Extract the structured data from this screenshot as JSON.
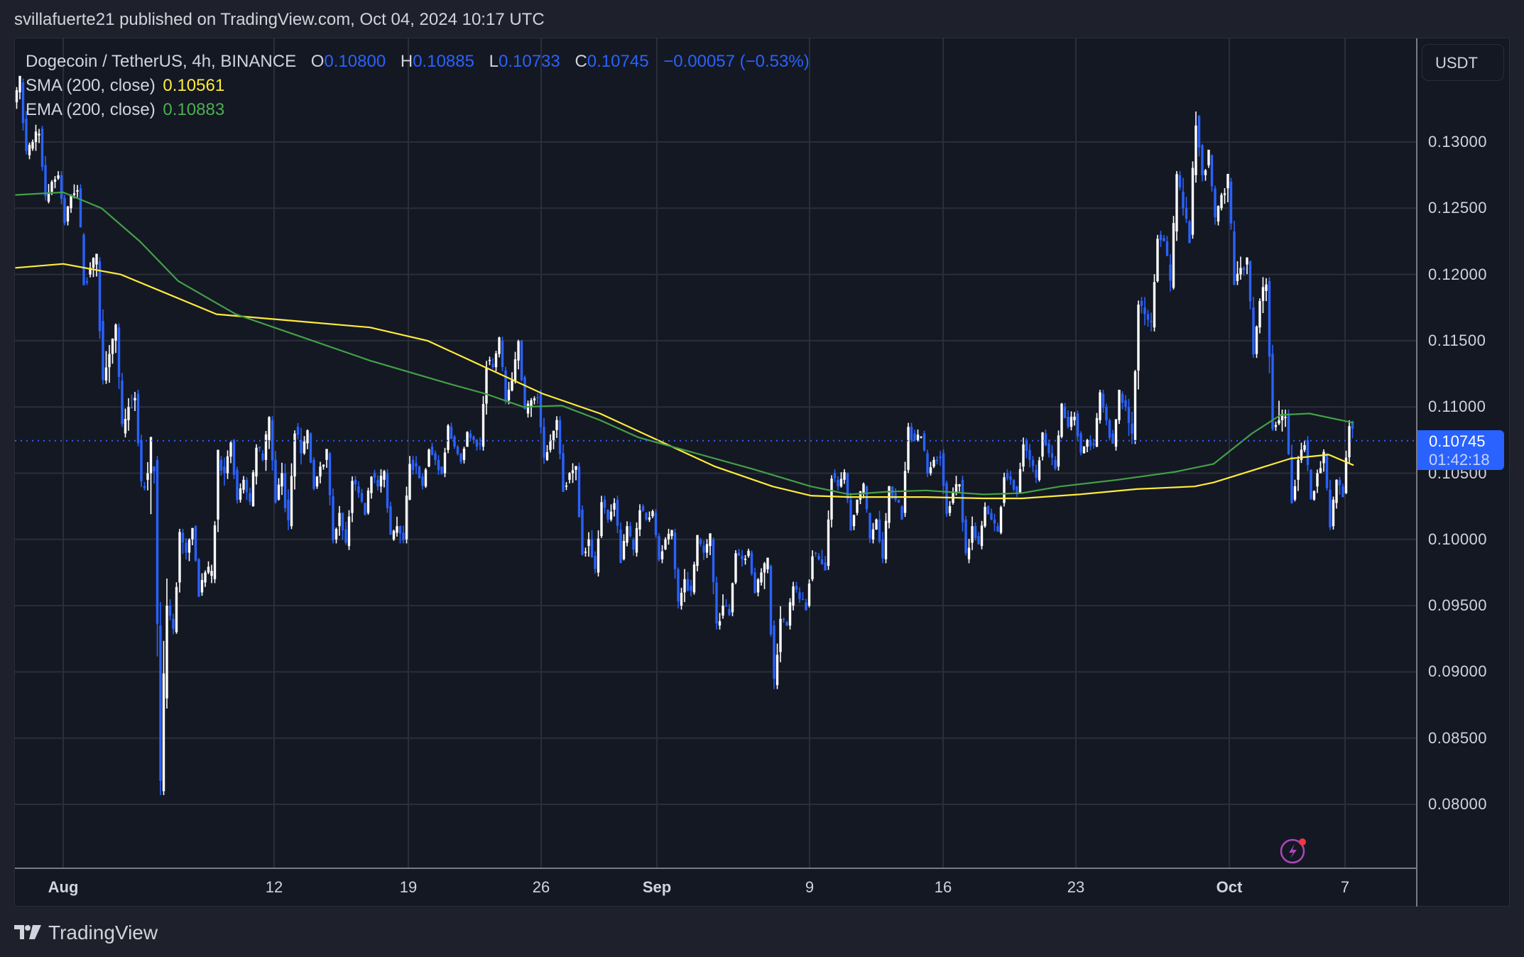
{
  "publisher": {
    "text": "svillafuerte21 published on TradingView.com, Oct 04, 2024 10:17 UTC"
  },
  "legend": {
    "symbol": "Dogecoin / TetherUS, 4h, BINANCE",
    "o_label": "O",
    "o_value": "0.10800",
    "h_label": "H",
    "h_value": "0.10885",
    "l_label": "L",
    "l_value": "0.10733",
    "c_label": "C",
    "c_value": "0.10745",
    "change": "−0.00057 (−0.53%)",
    "sma_label": "SMA (200, close)",
    "sma_value": "0.10561",
    "ema_label": "EMA (200, close)",
    "ema_value": "0.10883"
  },
  "price_axis": {
    "currency_button": "USDT",
    "ticks": [
      "0.13000",
      "0.12500",
      "0.12000",
      "0.11500",
      "0.11000",
      "0.10500",
      "0.10000",
      "0.09500",
      "0.09000",
      "0.08500",
      "0.08000"
    ],
    "current_price": "0.10745",
    "countdown": "01:42:18"
  },
  "time_axis": {
    "ticks": [
      {
        "label": "Aug",
        "bold": true
      },
      {
        "label": "12",
        "bold": false
      },
      {
        "label": "19",
        "bold": false
      },
      {
        "label": "26",
        "bold": false
      },
      {
        "label": "Sep",
        "bold": true
      },
      {
        "label": "9",
        "bold": false
      },
      {
        "label": "16",
        "bold": false
      },
      {
        "label": "23",
        "bold": false
      },
      {
        "label": "Oct",
        "bold": true
      },
      {
        "label": "7",
        "bold": false
      }
    ]
  },
  "footer": {
    "brand": "TradingView"
  },
  "colors": {
    "up_candle": "#ffffff",
    "down_candle": "#2962ff",
    "sma": "#ffeb3b",
    "ema": "#43a047",
    "grid": "#2a2e39",
    "background": "#141823"
  },
  "chart_data": {
    "type": "candlestick",
    "title": "Dogecoin / TetherUS, 4h, BINANCE",
    "xlabel": "",
    "ylabel": "USDT",
    "ylim": [
      0.0765,
      0.1365
    ],
    "grid": true,
    "x_ticks": [
      "Aug",
      "12",
      "19",
      "26",
      "Sep",
      "9",
      "16",
      "23",
      "Oct",
      "7"
    ],
    "y_ticks": [
      0.08,
      0.085,
      0.09,
      0.095,
      0.1,
      0.105,
      0.11,
      0.115,
      0.12,
      0.125,
      0.13
    ],
    "daily_ohlc_approx": {
      "start_day_offset_from_aug1": -2.5,
      "bars": [
        [
          0.133,
          0.1345,
          0.129,
          0.13
        ],
        [
          0.13,
          0.131,
          0.1255,
          0.127
        ],
        [
          0.127,
          0.1275,
          0.124,
          0.126
        ],
        [
          0.126,
          0.1265,
          0.1195,
          0.1205
        ],
        [
          0.1205,
          0.121,
          0.112,
          0.114
        ],
        [
          0.114,
          0.116,
          0.108,
          0.11
        ],
        [
          0.11,
          0.111,
          0.104,
          0.105
        ],
        [
          0.105,
          0.106,
          0.081,
          0.095
        ],
        [
          0.095,
          0.1005,
          0.093,
          0.099
        ],
        [
          0.099,
          0.101,
          0.096,
          0.0975
        ],
        [
          0.0975,
          0.106,
          0.097,
          0.105
        ],
        [
          0.105,
          0.1075,
          0.103,
          0.1045
        ],
        [
          0.1045,
          0.107,
          0.1025,
          0.106
        ],
        [
          0.106,
          0.109,
          0.103,
          0.105
        ],
        [
          0.105,
          0.1085,
          0.101,
          0.1065
        ],
        [
          0.1065,
          0.108,
          0.104,
          0.1055
        ],
        [
          0.1055,
          0.1065,
          0.1,
          0.102
        ],
        [
          0.102,
          0.1045,
          0.0995,
          0.1035
        ],
        [
          0.1035,
          0.105,
          0.102,
          0.104
        ],
        [
          0.104,
          0.105,
          0.1,
          0.101
        ],
        [
          0.101,
          0.106,
          0.1,
          0.1055
        ],
        [
          0.1055,
          0.107,
          0.104,
          0.106
        ],
        [
          0.106,
          0.1085,
          0.105,
          0.107
        ],
        [
          0.107,
          0.108,
          0.106,
          0.1075
        ],
        [
          0.1075,
          0.1135,
          0.107,
          0.113
        ],
        [
          0.113,
          0.115,
          0.1105,
          0.112
        ],
        [
          0.112,
          0.115,
          0.1095,
          0.1105
        ],
        [
          0.1105,
          0.111,
          0.106,
          0.1075
        ],
        [
          0.1075,
          0.109,
          0.104,
          0.105
        ],
        [
          0.105,
          0.1055,
          0.099,
          0.1
        ],
        [
          0.1,
          0.103,
          0.0975,
          0.1015
        ],
        [
          0.1015,
          0.103,
          0.0985,
          0.101
        ],
        [
          0.101,
          0.1025,
          0.099,
          0.1015
        ],
        [
          0.1015,
          0.102,
          0.0985,
          0.1
        ],
        [
          0.1,
          0.1005,
          0.095,
          0.097
        ],
        [
          0.097,
          0.1,
          0.096,
          0.099
        ],
        [
          0.099,
          0.1,
          0.0935,
          0.095
        ],
        [
          0.095,
          0.099,
          0.0945,
          0.0985
        ],
        [
          0.0985,
          0.099,
          0.096,
          0.0975
        ],
        [
          0.0975,
          0.098,
          0.089,
          0.094
        ],
        [
          0.094,
          0.0965,
          0.0935,
          0.0955
        ],
        [
          0.0955,
          0.099,
          0.095,
          0.0985
        ],
        [
          0.0985,
          0.105,
          0.098,
          0.104
        ],
        [
          0.104,
          0.105,
          0.101,
          0.103
        ],
        [
          0.103,
          0.104,
          0.1,
          0.1015
        ],
        [
          0.1015,
          0.104,
          0.0985,
          0.103
        ],
        [
          0.103,
          0.1085,
          0.102,
          0.1075
        ],
        [
          0.1075,
          0.108,
          0.105,
          0.106
        ],
        [
          0.106,
          0.1065,
          0.102,
          0.1035
        ],
        [
          0.1035,
          0.1045,
          0.0985,
          0.101
        ],
        [
          0.101,
          0.1025,
          0.0995,
          0.1015
        ],
        [
          0.1015,
          0.105,
          0.1005,
          0.1045
        ],
        [
          0.1045,
          0.1075,
          0.1035,
          0.106
        ],
        [
          0.106,
          0.108,
          0.1045,
          0.1065
        ],
        [
          0.1065,
          0.11,
          0.1055,
          0.1085
        ],
        [
          0.1085,
          0.1095,
          0.1065,
          0.1075
        ],
        [
          0.1075,
          0.111,
          0.107,
          0.109
        ],
        [
          0.109,
          0.111,
          0.107,
          0.11
        ],
        [
          0.11,
          0.118,
          0.1075,
          0.117
        ],
        [
          0.117,
          0.123,
          0.116,
          0.1225
        ],
        [
          0.1225,
          0.1275,
          0.119,
          0.125
        ],
        [
          0.125,
          0.132,
          0.123,
          0.1275
        ],
        [
          0.1275,
          0.129,
          0.124,
          0.126
        ],
        [
          0.126,
          0.127,
          0.1195,
          0.1205
        ],
        [
          0.1205,
          0.121,
          0.114,
          0.118
        ],
        [
          0.118,
          0.1195,
          0.1085,
          0.109
        ],
        [
          0.109,
          0.1095,
          0.103,
          0.106
        ],
        [
          0.106,
          0.1075,
          0.103,
          0.105
        ],
        [
          0.105,
          0.1065,
          0.101,
          0.1045
        ],
        [
          0.1045,
          0.1089,
          0.1035,
          0.1075
        ]
      ]
    },
    "series": [
      {
        "name": "SMA (200, close)",
        "color": "#ffeb3b",
        "points_day_price": [
          [
            -2.5,
            0.1205
          ],
          [
            0,
            0.1208
          ],
          [
            3,
            0.12
          ],
          [
            6,
            0.1182
          ],
          [
            8,
            0.117
          ],
          [
            12,
            0.1165
          ],
          [
            16,
            0.116
          ],
          [
            19,
            0.115
          ],
          [
            22,
            0.113
          ],
          [
            25,
            0.111
          ],
          [
            28,
            0.1095
          ],
          [
            31,
            0.1075
          ],
          [
            34,
            0.1055
          ],
          [
            37,
            0.104
          ],
          [
            39,
            0.1033
          ],
          [
            41,
            0.1032
          ],
          [
            45,
            0.1032
          ],
          [
            48,
            0.1031
          ],
          [
            50,
            0.1031
          ],
          [
            53,
            0.1034
          ],
          [
            56,
            0.1038
          ],
          [
            59,
            0.104
          ],
          [
            60,
            0.1043
          ],
          [
            62,
            0.1052
          ],
          [
            64,
            0.1061
          ],
          [
            66,
            0.1064
          ],
          [
            67.3,
            0.1056
          ]
        ],
        "last_value": 0.10561
      },
      {
        "name": "EMA (200, close)",
        "color": "#43a047",
        "points_day_price": [
          [
            -2.5,
            0.126
          ],
          [
            0,
            0.1262
          ],
          [
            2,
            0.125
          ],
          [
            4,
            0.1225
          ],
          [
            6,
            0.1195
          ],
          [
            9,
            0.117
          ],
          [
            12,
            0.1155
          ],
          [
            16,
            0.1135
          ],
          [
            20,
            0.1118
          ],
          [
            22,
            0.111
          ],
          [
            24,
            0.11
          ],
          [
            26,
            0.1101
          ],
          [
            28,
            0.109
          ],
          [
            30,
            0.1077
          ],
          [
            33,
            0.1065
          ],
          [
            36,
            0.1053
          ],
          [
            39,
            0.104
          ],
          [
            41,
            0.1034
          ],
          [
            43,
            0.1036
          ],
          [
            45,
            0.1037
          ],
          [
            48,
            0.1034
          ],
          [
            50,
            0.1035
          ],
          [
            52,
            0.104
          ],
          [
            55,
            0.1045
          ],
          [
            58,
            0.1051
          ],
          [
            60,
            0.1057
          ],
          [
            62,
            0.108
          ],
          [
            63.5,
            0.1094
          ],
          [
            65,
            0.1095
          ],
          [
            67.3,
            0.1088
          ]
        ],
        "last_value": 0.10883
      }
    ],
    "last": {
      "open": 0.108,
      "high": 0.10885,
      "low": 0.10733,
      "close": 0.10745,
      "change": -0.00057,
      "change_pct": -0.53
    }
  }
}
